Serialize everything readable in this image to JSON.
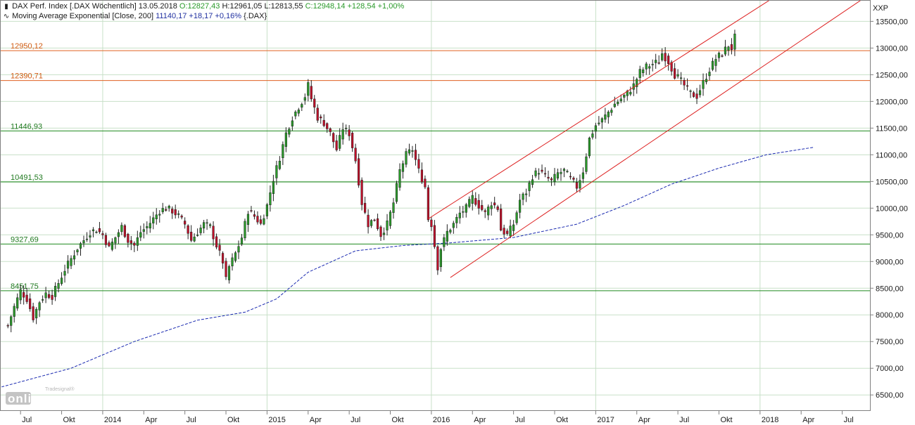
{
  "legend": {
    "line1": {
      "name": "DAX Perf. Index [.DAX  Wöchentlich] 13.05.2018",
      "open": "O:12827,43",
      "high": "H:12961,05",
      "low": "L:12813,55",
      "close_change": "C:12948,14 +128,54 +1,00%"
    },
    "line2": {
      "name": "Moving Average Exponential [Close, 200]",
      "value": "11140,17 +18,17 +0,16%",
      "suffix": "{.DAX}"
    },
    "candle_icon": "candlestick-icon",
    "ma_icon": "line-wave-icon"
  },
  "axis_title": "XXP",
  "logo": {
    "small": "Tradesignal®",
    "big": "online"
  },
  "colors": {
    "up_candle": "#2a9a2a",
    "down_candle": "#c0102a",
    "horizontal_orange": "#e06020",
    "horizontal_green": "#1e8a1e",
    "channel": "#dd2020",
    "ma": "#1a2ab0",
    "grid": "#c8e0c8",
    "orange_label": "#d05a10",
    "green_label": "#207a20"
  },
  "chart_data": {
    "type": "candlestick",
    "title": "DAX Perf. Index [.DAX  Wöchentlich]",
    "ylim": [
      6200,
      13900
    ],
    "y_ticks": [
      "6500,00",
      "7000,00",
      "7500,00",
      "8000,00",
      "8500,00",
      "9000,00",
      "9500,00",
      "10000,00",
      "10500,00",
      "11000,00",
      "11500,00",
      "12000,00",
      "12500,00",
      "13000,00",
      "13500,00"
    ],
    "y_tick_values": [
      6500,
      7000,
      7500,
      8000,
      8500,
      9000,
      9500,
      10000,
      10500,
      11000,
      11500,
      12000,
      12500,
      13000,
      13500
    ],
    "x_range_weeks": [
      -2.5,
      230.5
    ],
    "x_ticks": [
      {
        "label": "Jul",
        "week": 4
      },
      {
        "label": "Okt",
        "week": 17
      },
      {
        "label": "2014",
        "week": 30
      },
      {
        "label": "Apr",
        "week": 43
      },
      {
        "label": "Jul",
        "week": 56
      },
      {
        "label": "Okt",
        "week": 69
      },
      {
        "label": "2015",
        "week": 82
      },
      {
        "label": "Apr",
        "week": 95
      },
      {
        "label": "Jul",
        "week": 108
      },
      {
        "label": "Okt",
        "week": 121
      },
      {
        "label": "2016",
        "week": 134
      },
      {
        "label": "Apr",
        "week": 147
      },
      {
        "label": "Jul",
        "week": 160
      },
      {
        "label": "Okt",
        "week": 173
      },
      {
        "label": "2017",
        "week": 186
      },
      {
        "label": "Apr",
        "week": 199
      },
      {
        "label": "Jul",
        "week": 212
      },
      {
        "label": "Okt",
        "week": 225
      },
      {
        "label": "2018",
        "week": 238
      },
      {
        "label": "Apr",
        "week": 251
      },
      {
        "label": "Jul",
        "week": 264
      }
    ],
    "horizontal_lines": [
      {
        "label": "12950,12",
        "value": 12950.12,
        "color": "orange"
      },
      {
        "label": "12390,71",
        "value": 12390.71,
        "color": "orange"
      },
      {
        "label": "11446,93",
        "value": 11446.93,
        "color": "green"
      },
      {
        "label": "10491,53",
        "value": 10491.53,
        "color": "green"
      },
      {
        "label": "9327,69",
        "value": 9327.69,
        "color": "green"
      },
      {
        "label": "8451,75",
        "value": 8451.75,
        "color": "green"
      }
    ],
    "channel_lines": [
      {
        "from": [
          133,
          9800
        ],
        "to": [
          249,
          14200
        ]
      },
      {
        "from": [
          140,
          8700
        ],
        "to": [
          275,
          14100
        ]
      }
    ],
    "ema_200": [
      [
        -2,
        6650
      ],
      [
        20,
        7000
      ],
      [
        40,
        7500
      ],
      [
        60,
        7900
      ],
      [
        75,
        8050
      ],
      [
        85,
        8300
      ],
      [
        95,
        8800
      ],
      [
        110,
        9200
      ],
      [
        125,
        9300
      ],
      [
        140,
        9350
      ],
      [
        160,
        9450
      ],
      [
        180,
        9700
      ],
      [
        195,
        10050
      ],
      [
        210,
        10450
      ],
      [
        225,
        10750
      ],
      [
        240,
        11000
      ],
      [
        255,
        11140
      ]
    ],
    "close_series": [
      [
        0,
        7800
      ],
      [
        2,
        8150
      ],
      [
        4,
        8450
      ],
      [
        6,
        8300
      ],
      [
        8,
        7950
      ],
      [
        10,
        8250
      ],
      [
        12,
        8400
      ],
      [
        14,
        8350
      ],
      [
        16,
        8600
      ],
      [
        18,
        8850
      ],
      [
        20,
        9050
      ],
      [
        22,
        9250
      ],
      [
        24,
        9400
      ],
      [
        26,
        9550
      ],
      [
        28,
        9600
      ],
      [
        30,
        9500
      ],
      [
        32,
        9250
      ],
      [
        34,
        9450
      ],
      [
        36,
        9650
      ],
      [
        38,
        9400
      ],
      [
        40,
        9300
      ],
      [
        42,
        9550
      ],
      [
        44,
        9650
      ],
      [
        46,
        9800
      ],
      [
        48,
        9950
      ],
      [
        50,
        10000
      ],
      [
        52,
        9950
      ],
      [
        54,
        9850
      ],
      [
        56,
        9700
      ],
      [
        58,
        9400
      ],
      [
        60,
        9550
      ],
      [
        62,
        9700
      ],
      [
        64,
        9650
      ],
      [
        66,
        9300
      ],
      [
        68,
        9000
      ],
      [
        69,
        8650
      ],
      [
        70,
        8900
      ],
      [
        72,
        9150
      ],
      [
        74,
        9450
      ],
      [
        76,
        9950
      ],
      [
        78,
        9850
      ],
      [
        80,
        9700
      ],
      [
        82,
        10050
      ],
      [
        84,
        10550
      ],
      [
        86,
        10950
      ],
      [
        88,
        11400
      ],
      [
        90,
        11700
      ],
      [
        92,
        11900
      ],
      [
        94,
        12100
      ],
      [
        95,
        12300
      ],
      [
        96,
        12050
      ],
      [
        98,
        11700
      ],
      [
        100,
        11600
      ],
      [
        102,
        11400
      ],
      [
        104,
        11100
      ],
      [
        106,
        11500
      ],
      [
        108,
        11400
      ],
      [
        110,
        10900
      ],
      [
        112,
        10100
      ],
      [
        114,
        9700
      ],
      [
        116,
        9800
      ],
      [
        118,
        9500
      ],
      [
        120,
        9700
      ],
      [
        122,
        10100
      ],
      [
        124,
        10700
      ],
      [
        126,
        11000
      ],
      [
        128,
        11100
      ],
      [
        130,
        10700
      ],
      [
        132,
        10400
      ],
      [
        133,
        9800
      ],
      [
        134,
        9700
      ],
      [
        135,
        9300
      ],
      [
        136,
        8900
      ],
      [
        137,
        9250
      ],
      [
        139,
        9550
      ],
      [
        141,
        9700
      ],
      [
        143,
        9900
      ],
      [
        145,
        10000
      ],
      [
        147,
        10200
      ],
      [
        149,
        10050
      ],
      [
        151,
        9900
      ],
      [
        153,
        10100
      ],
      [
        155,
        10000
      ],
      [
        156,
        9600
      ],
      [
        158,
        9500
      ],
      [
        160,
        9700
      ],
      [
        162,
        10150
      ],
      [
        164,
        10300
      ],
      [
        166,
        10600
      ],
      [
        168,
        10700
      ],
      [
        170,
        10600
      ],
      [
        172,
        10500
      ],
      [
        174,
        10650
      ],
      [
        176,
        10700
      ],
      [
        178,
        10550
      ],
      [
        180,
        10400
      ],
      [
        182,
        10700
      ],
      [
        184,
        11300
      ],
      [
        186,
        11550
      ],
      [
        188,
        11650
      ],
      [
        190,
        11800
      ],
      [
        192,
        11950
      ],
      [
        194,
        12050
      ],
      [
        196,
        12150
      ],
      [
        198,
        12300
      ],
      [
        200,
        12550
      ],
      [
        202,
        12650
      ],
      [
        204,
        12700
      ],
      [
        206,
        12750
      ],
      [
        207,
        12900
      ],
      [
        209,
        12750
      ],
      [
        211,
        12500
      ],
      [
        212,
        12450
      ],
      [
        214,
        12300
      ],
      [
        216,
        12150
      ],
      [
        218,
        12100
      ],
      [
        220,
        12350
      ],
      [
        222,
        12600
      ],
      [
        224,
        12800
      ],
      [
        226,
        12900
      ],
      [
        228,
        13050
      ],
      [
        229,
        13000
      ],
      [
        230,
        13200
      ]
    ]
  }
}
